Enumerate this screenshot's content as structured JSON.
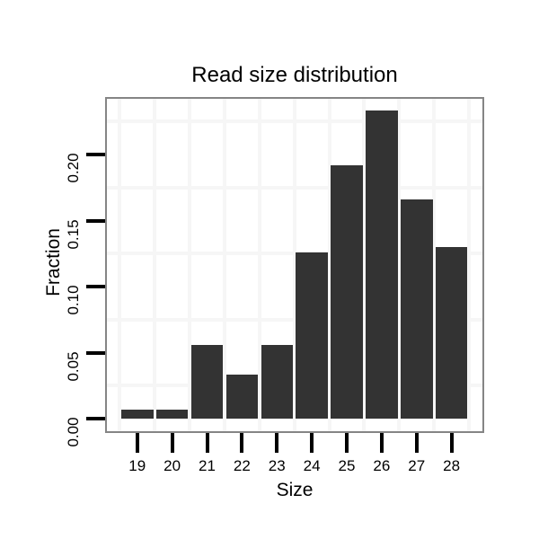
{
  "chart_data": {
    "type": "bar",
    "title": "Read size distribution",
    "xlabel": "Size",
    "ylabel": "Fraction",
    "categories": [
      "19",
      "20",
      "21",
      "22",
      "23",
      "24",
      "25",
      "26",
      "27",
      "28"
    ],
    "values": [
      0.007,
      0.007,
      0.056,
      0.033,
      0.056,
      0.126,
      0.192,
      0.233,
      0.166,
      0.13
    ],
    "ytick_labels": [
      "0.00",
      "0.05",
      "0.10",
      "0.15",
      "0.20"
    ],
    "ytick_values": [
      0,
      0.05,
      0.1,
      0.15,
      0.2
    ],
    "ylim": [
      -0.0095,
      0.2422
    ],
    "grid": "light gray lines midway between ticks on both axes",
    "legend": "none",
    "colors": {
      "bar": "#333333",
      "grid": "#f6f6f6",
      "panel_border": "#858585",
      "tick": "#000000",
      "text": "#000000",
      "background": "#ffffff"
    }
  }
}
